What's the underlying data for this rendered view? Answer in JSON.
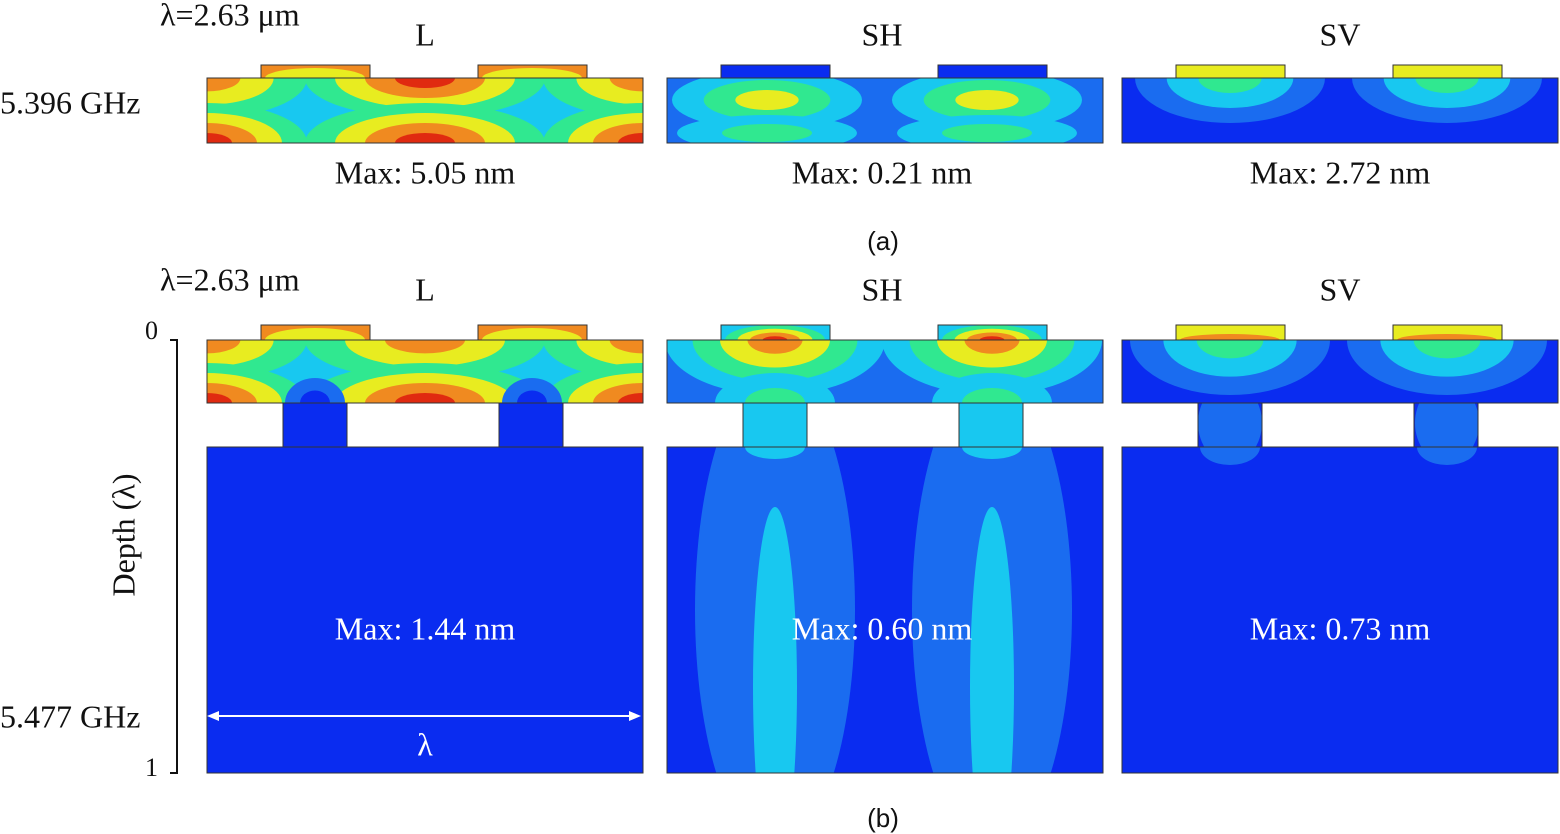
{
  "panel_a": {
    "wavelength": "λ=2.63 μm",
    "frequency": "5.396 GHz",
    "columns": [
      {
        "mode": "L",
        "max": "Max: 5.05 nm"
      },
      {
        "mode": "SH",
        "max": "Max: 0.21 nm"
      },
      {
        "mode": "SV",
        "max": "Max: 2.72 nm"
      }
    ],
    "caption": "(a)"
  },
  "panel_b": {
    "wavelength": "λ=2.63 μm",
    "frequency": "5.477 GHz",
    "columns": [
      {
        "mode": "L",
        "max": "Max: 1.44 nm"
      },
      {
        "mode": "SH",
        "max": "Max: 0.60 nm"
      },
      {
        "mode": "SV",
        "max": "Max: 0.73 nm"
      }
    ],
    "depth_axis": {
      "label": "Depth (λ)",
      "ticks": [
        "0",
        "1"
      ]
    },
    "period_label": "λ",
    "caption": "(b)"
  }
}
